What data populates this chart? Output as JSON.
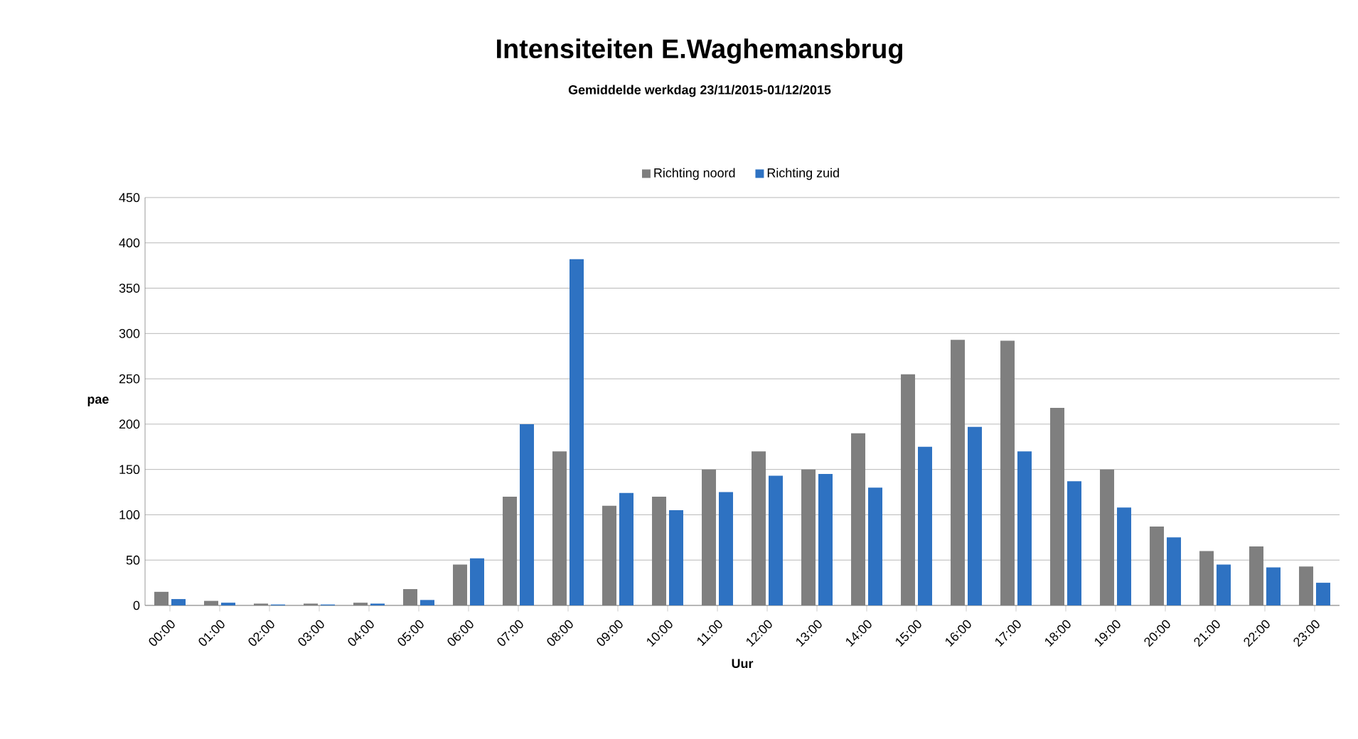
{
  "chart_data": {
    "type": "bar",
    "title": "Intensiteiten E.Waghemansbrug",
    "subtitle": "Gemiddelde werkdag 23/11/2015-01/12/2015",
    "xlabel": "Uur",
    "ylabel": "pae",
    "categories": [
      "00:00",
      "01:00",
      "02:00",
      "03:00",
      "04:00",
      "05:00",
      "06:00",
      "07:00",
      "08:00",
      "09:00",
      "10:00",
      "11:00",
      "12:00",
      "13:00",
      "14:00",
      "15:00",
      "16:00",
      "17:00",
      "18:00",
      "19:00",
      "20:00",
      "21:00",
      "22:00",
      "23:00"
    ],
    "series": [
      {
        "name": "Richting noord",
        "color": "#7f7f7f",
        "values": [
          15,
          5,
          2,
          2,
          3,
          18,
          45,
          120,
          170,
          110,
          120,
          150,
          170,
          150,
          190,
          255,
          293,
          292,
          218,
          150,
          87,
          60,
          65,
          43
        ]
      },
      {
        "name": "Richting zuid",
        "color": "#2e72c2",
        "values": [
          7,
          3,
          1,
          1,
          2,
          6,
          52,
          200,
          382,
          124,
          105,
          125,
          143,
          145,
          130,
          175,
          197,
          170,
          137,
          108,
          75,
          45,
          42,
          25
        ]
      }
    ],
    "ylim": [
      0,
      450
    ],
    "yticks": [
      0,
      50,
      100,
      150,
      200,
      250,
      300,
      350,
      400,
      450
    ],
    "grid": "y",
    "legend": "top"
  }
}
